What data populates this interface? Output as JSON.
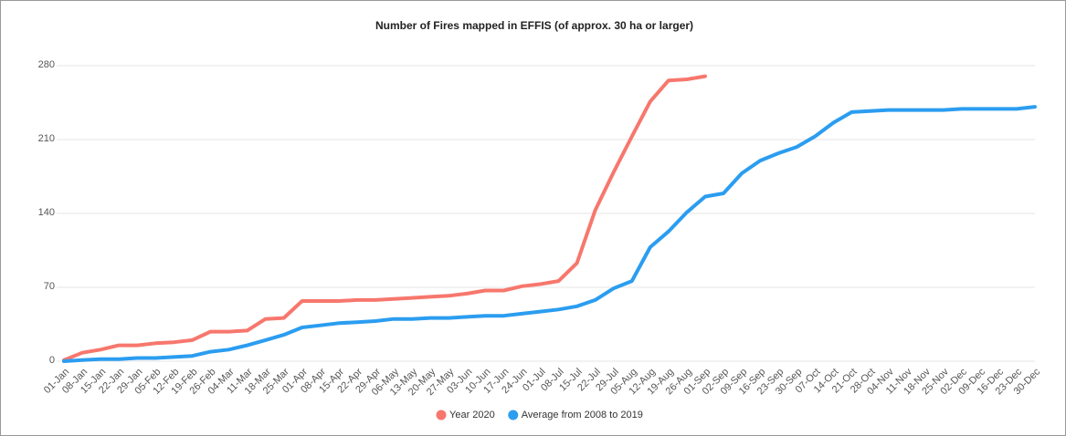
{
  "chart_data": {
    "type": "line",
    "title": "Number of Fires mapped in EFFIS (of approx. 30 ha or larger)",
    "categories": [
      "01-Jan",
      "08-Jan",
      "15-Jan",
      "22-Jan",
      "29-Jan",
      "05-Feb",
      "12-Feb",
      "19-Feb",
      "26-Feb",
      "04-Mar",
      "11-Mar",
      "18-Mar",
      "25-Mar",
      "01-Apr",
      "08-Apr",
      "15-Apr",
      "22-Apr",
      "29-Apr",
      "06-May",
      "13-May",
      "20-May",
      "27-May",
      "03-Jun",
      "10-Jun",
      "17-Jun",
      "24-Jun",
      "01-Jul",
      "08-Jul",
      "15-Jul",
      "22-Jul",
      "29-Jul",
      "05-Aug",
      "12-Aug",
      "19-Aug",
      "26-Aug",
      "01-Sep",
      "02-Sep",
      "09-Sep",
      "16-Sep",
      "23-Sep",
      "30-Sep",
      "07-Oct",
      "14-Oct",
      "21-Oct",
      "28-Oct",
      "04-Nov",
      "11-Nov",
      "18-Nov",
      "25-Nov",
      "02-Dec",
      "09-Dec",
      "16-Dec",
      "23-Dec",
      "30-Dec"
    ],
    "series": [
      {
        "name": "Year 2020",
        "color": "#f7776d",
        "values": [
          1,
          8,
          11,
          15,
          15,
          17,
          18,
          20,
          28,
          28,
          29,
          40,
          41,
          57,
          57,
          57,
          58,
          58,
          59,
          60,
          61,
          62,
          64,
          67,
          67,
          71,
          73,
          76,
          93,
          143,
          179,
          213,
          246,
          266,
          267,
          270,
          null,
          null,
          null,
          null,
          null,
          null,
          null,
          null,
          null,
          null,
          null,
          null,
          null,
          null,
          null,
          null,
          null,
          null
        ]
      },
      {
        "name": "Average from 2008 to 2019",
        "color": "#2b9df0",
        "values": [
          0,
          1,
          2,
          2,
          3,
          3,
          4,
          5,
          9,
          11,
          15,
          20,
          25,
          32,
          34,
          36,
          37,
          38,
          40,
          40,
          41,
          41,
          42,
          43,
          43,
          45,
          47,
          49,
          52,
          58,
          69,
          76,
          108,
          123,
          141,
          156,
          159,
          178,
          190,
          197,
          203,
          213,
          226,
          236,
          237,
          238,
          238,
          238,
          238,
          239,
          239,
          239,
          239,
          241
        ]
      }
    ],
    "ylim": [
      0,
      280
    ],
    "yticks": [
      0,
      70,
      140,
      210,
      280
    ],
    "grid": true
  }
}
